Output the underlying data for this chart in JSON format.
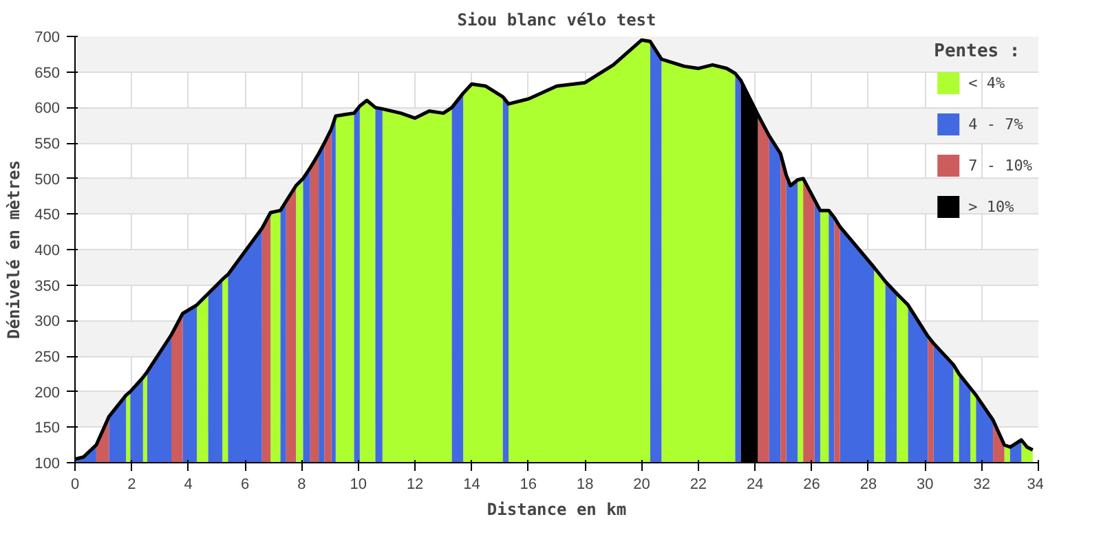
{
  "chart_data": {
    "type": "area",
    "title": "Siou blanc vélo test",
    "xlabel": "Distance en km",
    "ylabel": "Dénivelé en mètres",
    "legend_title": "Pentes :",
    "legend": "top right",
    "grid": true,
    "xlim": [
      0,
      34
    ],
    "xticks": [
      0,
      2,
      4,
      6,
      8,
      10,
      12,
      14,
      16,
      18,
      20,
      22,
      24,
      26,
      28,
      30,
      32,
      34
    ],
    "ylim": [
      100,
      700
    ],
    "yticks": [
      100,
      150,
      200,
      250,
      300,
      350,
      400,
      450,
      500,
      550,
      600,
      650,
      700
    ],
    "series": [
      {
        "name": "< 4%",
        "color": "#adff2f",
        "x": [
          1.8,
          1.95,
          null,
          2.4,
          2.55,
          null,
          4.3,
          4.7,
          null,
          5.2,
          5.4,
          null,
          6.9,
          7.25,
          null,
          7.8,
          8.05,
          null,
          9.2,
          9.5,
          9.85,
          null,
          10.05,
          10.3,
          10.6,
          null,
          10.85,
          11.5,
          12,
          12.5,
          13,
          13.3,
          null,
          13.7,
          14,
          14.5,
          15.1,
          null,
          15.3,
          16,
          17,
          18,
          19,
          20,
          20.3,
          null,
          20.7,
          21.5,
          22,
          22.5,
          23,
          23.3,
          null,
          25.5,
          25.7,
          null,
          26.3,
          26.6,
          null,
          28.2,
          28.6,
          null,
          29.0,
          29.4,
          null,
          31.0,
          31.2,
          null,
          31.6,
          31.8,
          null,
          32.8,
          33.0,
          null,
          33.4,
          33.6,
          33.8
        ],
        "values": [
          195,
          200,
          null,
          220,
          228,
          null,
          322,
          338,
          null,
          358,
          365,
          null,
          452,
          455,
          null,
          490,
          500,
          null,
          588,
          590,
          592,
          null,
          602,
          610,
          600,
          null,
          598,
          592,
          585,
          595,
          592,
          600,
          null,
          620,
          633,
          630,
          615,
          null,
          605,
          612,
          630,
          635,
          660,
          695,
          693,
          null,
          668,
          658,
          655,
          660,
          655,
          648,
          null,
          498,
          500,
          null,
          455,
          455,
          null,
          375,
          355,
          null,
          338,
          322,
          null,
          238,
          225,
          null,
          205,
          195,
          null,
          125,
          122,
          null,
          132,
          122,
          118
        ]
      },
      {
        "name": "4 - 7%",
        "color": "#4169e1",
        "x": [
          0,
          0.3,
          0.75,
          null,
          1.2,
          1.8,
          null,
          1.95,
          2.4,
          null,
          2.55,
          3.4,
          null,
          3.8,
          4.3,
          null,
          4.7,
          5.2,
          null,
          5.4,
          6.6,
          null,
          7.25,
          7.45,
          null,
          8.05,
          8.3,
          null,
          8.6,
          8.8,
          null,
          9.05,
          9.2,
          null,
          9.85,
          10.05,
          null,
          10.6,
          10.85,
          null,
          13.3,
          13.7,
          null,
          15.1,
          15.3,
          null,
          20.3,
          20.7,
          null,
          23.3,
          23.5,
          null,
          24.5,
          24.9,
          null,
          25.1,
          25.25,
          25.5,
          null,
          26.1,
          26.3,
          null,
          26.6,
          26.8,
          null,
          27.0,
          28.2,
          null,
          28.6,
          29.0,
          null,
          29.4,
          30.1,
          null,
          30.3,
          31.0,
          null,
          31.2,
          31.6,
          null,
          31.8,
          32.4,
          null,
          33.0,
          33.4
        ],
        "values": [
          105,
          108,
          125,
          null,
          165,
          195,
          null,
          200,
          220,
          null,
          228,
          280,
          null,
          310,
          322,
          null,
          338,
          358,
          null,
          365,
          430,
          null,
          455,
          468,
          null,
          500,
          515,
          null,
          535,
          550,
          null,
          570,
          588,
          null,
          592,
          602,
          null,
          600,
          598,
          null,
          600,
          620,
          null,
          615,
          605,
          null,
          693,
          668,
          null,
          648,
          638,
          null,
          560,
          535,
          null,
          505,
          490,
          498,
          null,
          470,
          455,
          null,
          455,
          445,
          null,
          432,
          375,
          null,
          355,
          338,
          null,
          322,
          278,
          null,
          268,
          238,
          null,
          225,
          205,
          null,
          195,
          160,
          null,
          122,
          132
        ]
      },
      {
        "name": "7 - 10%",
        "color": "#cd5c5c",
        "x": [
          0.75,
          1.2,
          null,
          3.4,
          3.8,
          null,
          6.6,
          6.9,
          null,
          7.45,
          7.8,
          null,
          8.3,
          8.6,
          null,
          8.8,
          9.05,
          null,
          24.1,
          24.5,
          null,
          24.9,
          25.1,
          null,
          25.7,
          26.1,
          null,
          26.8,
          27.0,
          null,
          30.1,
          30.3,
          null,
          32.4,
          32.8
        ],
        "values": [
          125,
          165,
          null,
          280,
          310,
          null,
          430,
          452,
          null,
          468,
          490,
          null,
          515,
          535,
          null,
          550,
          570,
          null,
          590,
          560,
          null,
          535,
          505,
          null,
          500,
          470,
          null,
          445,
          432,
          null,
          278,
          268,
          null,
          160,
          125
        ]
      },
      {
        "name": "> 10%",
        "color": "#000000",
        "x": [
          23.5,
          24.1
        ],
        "values": [
          638,
          590
        ]
      },
      {
        "type": "line",
        "color": "#000000",
        "x": [
          0,
          0.3,
          0.75,
          1.2,
          1.8,
          1.95,
          2.4,
          2.55,
          3.4,
          3.8,
          4.3,
          4.7,
          5.2,
          5.4,
          6.6,
          6.9,
          7.25,
          7.45,
          7.8,
          8.05,
          8.3,
          8.6,
          8.8,
          9.05,
          9.2,
          9.5,
          9.85,
          10.05,
          10.3,
          10.6,
          10.85,
          11.5,
          12,
          12.5,
          13,
          13.3,
          13.7,
          14,
          14.5,
          15.1,
          15.3,
          16,
          17,
          18,
          19,
          20,
          20.3,
          20.7,
          21.5,
          22,
          22.5,
          23,
          23.3,
          23.5,
          24.1,
          24.5,
          24.9,
          25.1,
          25.25,
          25.5,
          25.7,
          26.1,
          26.3,
          26.6,
          26.8,
          27.0,
          28.2,
          28.6,
          29.0,
          29.4,
          30.1,
          30.3,
          31.0,
          31.2,
          31.6,
          31.8,
          32.4,
          32.8,
          33.0,
          33.4,
          33.6,
          33.8
        ],
        "values": [
          105,
          108,
          125,
          165,
          195,
          200,
          220,
          228,
          280,
          310,
          322,
          338,
          358,
          365,
          430,
          452,
          455,
          468,
          490,
          500,
          515,
          535,
          550,
          570,
          588,
          590,
          592,
          602,
          610,
          600,
          598,
          592,
          585,
          595,
          592,
          600,
          620,
          633,
          630,
          615,
          605,
          612,
          630,
          635,
          660,
          695,
          693,
          668,
          658,
          655,
          660,
          655,
          648,
          638,
          590,
          560,
          535,
          505,
          490,
          498,
          500,
          470,
          455,
          455,
          445,
          432,
          375,
          355,
          338,
          322,
          278,
          268,
          238,
          225,
          205,
          195,
          160,
          125,
          122,
          132,
          122,
          118
        ]
      }
    ]
  }
}
